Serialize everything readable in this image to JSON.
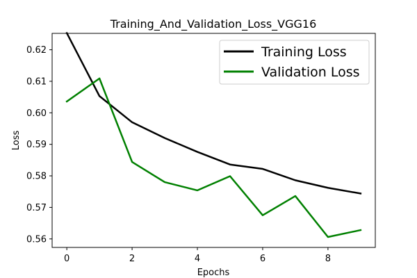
{
  "chart_data": {
    "type": "line",
    "title": "Training_And_Validation_Loss_VGG16",
    "xlabel": "Epochs",
    "ylabel": "Loss",
    "xlim": [
      -0.45,
      9.45
    ],
    "ylim": [
      0.5573,
      0.6252
    ],
    "x": [
      0,
      1,
      2,
      3,
      4,
      5,
      6,
      7,
      8,
      9
    ],
    "x_ticks": [
      0,
      2,
      4,
      6,
      8
    ],
    "x_tick_labels": [
      "0",
      "2",
      "4",
      "6",
      "8"
    ],
    "y_ticks": [
      0.56,
      0.57,
      0.58,
      0.59,
      0.6,
      0.61,
      0.62
    ],
    "y_tick_labels": [
      "0.56",
      "0.57",
      "0.58",
      "0.59",
      "0.60",
      "0.61",
      "0.62"
    ],
    "grid": false,
    "legend_position": "top-right",
    "series": [
      {
        "name": "Training Loss",
        "color": "#000000",
        "values": [
          0.6253,
          0.6053,
          0.597,
          0.592,
          0.5876,
          0.5836,
          0.5822,
          0.5786,
          0.5762,
          0.5744
        ]
      },
      {
        "name": "Validation Loss",
        "color": "#008000",
        "values": [
          0.6036,
          0.6109,
          0.5844,
          0.578,
          0.5754,
          0.5799,
          0.5675,
          0.5736,
          0.5606,
          0.5628
        ]
      }
    ]
  }
}
